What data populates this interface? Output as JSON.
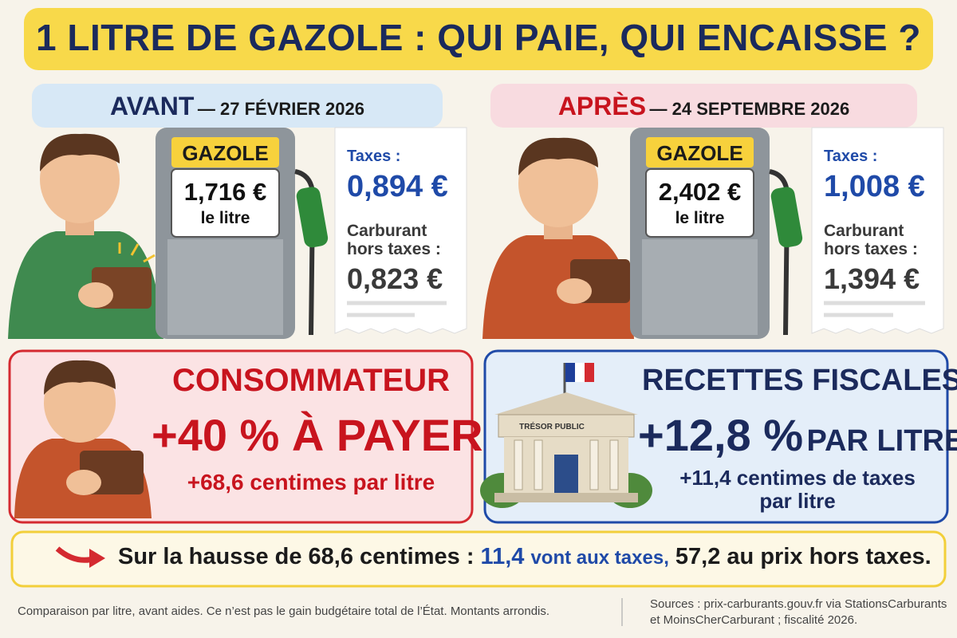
{
  "title": "1 LITRE DE GAZOLE : QUI PAIE, QUI ENCAISSE ?",
  "before": {
    "label": "AVANT",
    "date": "— 27 FÉVRIER 2026",
    "pump_label": "GAZOLE",
    "price": "1,716 €",
    "unit": "le litre",
    "taxes_label": "Taxes :",
    "taxes": "0,894 €",
    "fuel_label": "Carburant hors taxes :",
    "fuel": "0,823 €"
  },
  "after": {
    "label": "APRÈS",
    "date": "— 24 SEPTEMBRE 2026",
    "pump_label": "GAZOLE",
    "price": "2,402 €",
    "unit": "le litre",
    "taxes_label": "Taxes :",
    "taxes": "1,008 €",
    "fuel_label": "Carburant hors taxes :",
    "fuel": "1,394 €"
  },
  "consumer": {
    "title": "CONSOMMATEUR",
    "headline": "+40 % À PAYER",
    "detail": "+68,6 centimes par litre"
  },
  "tax_revenue": {
    "title": "RECETTES FISCALES",
    "building": "TRÉSOR PUBLIC",
    "headline_value": "+12,8 %",
    "headline_unit": "PAR LITRE",
    "detail": "+11,4 centimes de taxes par litre"
  },
  "summary": {
    "lead": "Sur la hausse de 68,6 centimes :",
    "taxes_amount": "11,4",
    "taxes_text": "vont aux taxes,",
    "rest": "57,2 au prix hors taxes."
  },
  "footer": {
    "note": "Comparaison par litre, avant aides. Ce n’est pas le gain budgétaire total de l’État. Montants arrondis.",
    "sources": "Sources : prix-carburants.gouv.fr via StationsCarburants et MoinsCherCarburant ; fiscalité 2026."
  }
}
